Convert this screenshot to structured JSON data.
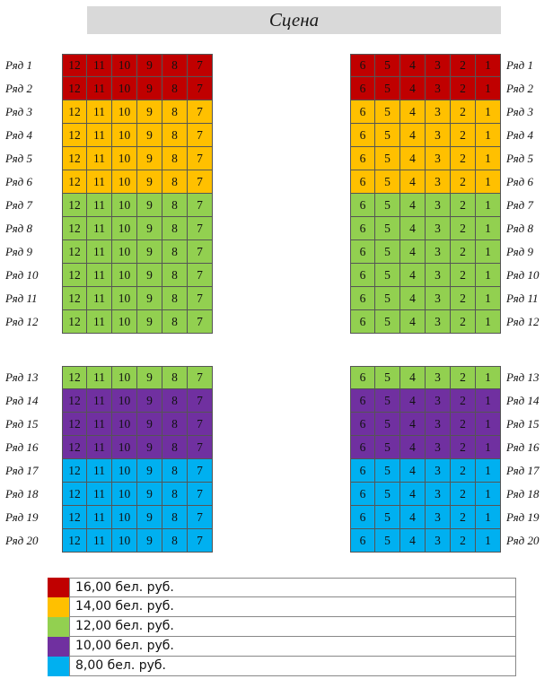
{
  "stage": {
    "label": "Сцена"
  },
  "colors": {
    "red": "#c00000",
    "orange": "#ffc000",
    "green": "#92d050",
    "purple": "#7030a0",
    "blue": "#00b0f0"
  },
  "row_labels": [
    "Ряд 1",
    "Ряд 2",
    "Ряд 3",
    "Ряд 4",
    "Ряд 5",
    "Ряд 6",
    "Ряд 7",
    "Ряд 8",
    "Ряд 9",
    "Ряд 10",
    "Ряд 11",
    "Ряд 12",
    "Ряд 13",
    "Ряд 14",
    "Ряд 15",
    "Ряд 16",
    "Ряд 17",
    "Ряд 18",
    "Ряд 19",
    "Ряд 20"
  ],
  "left_seats": [
    "12",
    "11",
    "10",
    "9",
    "8",
    "7"
  ],
  "right_seats": [
    "6",
    "5",
    "4",
    "3",
    "2",
    "1"
  ],
  "row_colors": [
    "red",
    "red",
    "orange",
    "orange",
    "orange",
    "orange",
    "green",
    "green",
    "green",
    "green",
    "green",
    "green",
    "green",
    "purple",
    "purple",
    "purple",
    "blue",
    "blue",
    "blue",
    "blue"
  ],
  "legend": [
    {
      "color": "red",
      "label": "16,00 бел. руб."
    },
    {
      "color": "orange",
      "label": "14,00 бел. руб."
    },
    {
      "color": "green",
      "label": "12,00 бел. руб."
    },
    {
      "color": "purple",
      "label": "10,00 бел. руб."
    },
    {
      "color": "blue",
      "label": "8,00 бел. руб."
    }
  ]
}
